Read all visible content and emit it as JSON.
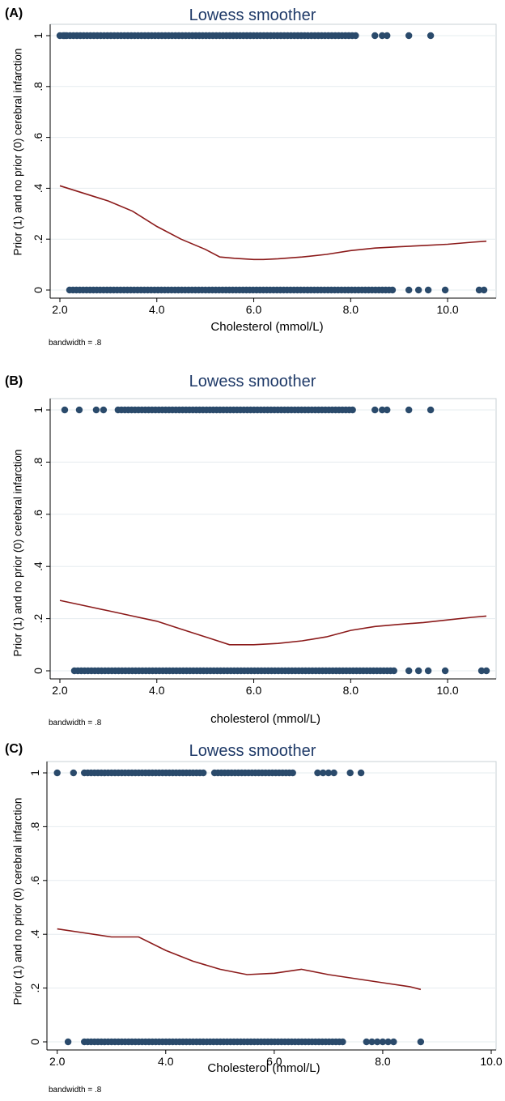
{
  "panels": [
    {
      "letter": "(A)",
      "title": "Lowess smoother"
    },
    {
      "letter": "(B)",
      "title": "Lowess smoother"
    },
    {
      "letter": "(C)",
      "title": "Lowess smoother"
    }
  ],
  "colors": {
    "point": "#2a4a6b",
    "curve": "#8b1a1a",
    "grid": "#e6ecef",
    "title": "#1f3a68"
  },
  "chart_data": [
    {
      "type": "scatter",
      "title": "Lowess smoother",
      "ylabel": "Prior (1) and no prior (0) cerebral infarction",
      "xlabel": "Cholesterol (mmol/L)",
      "note": "bandwidth = .8",
      "xlim": [
        1.9,
        10.9
      ],
      "ylim": [
        0,
        1
      ],
      "xticks": [
        2.0,
        4.0,
        6.0,
        8.0,
        10.0
      ],
      "xtick_labels": [
        "2.0",
        "4.0",
        "6.0",
        "8.0",
        "10.0"
      ],
      "yticks": [
        0,
        0.2,
        0.4,
        0.6,
        0.8,
        1
      ],
      "ytick_labels": [
        "0",
        ".2",
        ".4",
        ".6",
        ".8",
        "1"
      ],
      "grid": true,
      "points_y1": {
        "dense_range": [
          2.0,
          8.1
        ],
        "extra": [
          2.1,
          8.5,
          8.65,
          8.75,
          9.2,
          9.65
        ]
      },
      "points_y0": {
        "dense_range": [
          2.2,
          8.9
        ],
        "extra": [
          9.2,
          9.4,
          9.6,
          9.95,
          10.65,
          10.75
        ]
      },
      "lowess": {
        "x": [
          2.0,
          2.5,
          3.0,
          3.5,
          4.0,
          4.5,
          5.0,
          5.3,
          5.6,
          6.0,
          6.2,
          6.5,
          7.0,
          7.5,
          8.0,
          8.5,
          9.0,
          9.5,
          10.0,
          10.5,
          10.8
        ],
        "y": [
          0.41,
          0.38,
          0.35,
          0.31,
          0.25,
          0.2,
          0.16,
          0.13,
          0.125,
          0.12,
          0.12,
          0.123,
          0.13,
          0.14,
          0.155,
          0.165,
          0.17,
          0.175,
          0.18,
          0.188,
          0.192
        ]
      }
    },
    {
      "type": "scatter",
      "title": "Lowess smoother",
      "ylabel": "Prior (1) and no prior (0) cerebral infarction",
      "xlabel": "cholesterol (mmol/L)",
      "note": "bandwidth = .8",
      "xlim": [
        1.9,
        10.9
      ],
      "ylim": [
        0,
        1
      ],
      "xticks": [
        2.0,
        4.0,
        6.0,
        8.0,
        10.0
      ],
      "xtick_labels": [
        "2.0",
        "4.0",
        "6.0",
        "8.0",
        "10.0"
      ],
      "yticks": [
        0,
        0.2,
        0.4,
        0.6,
        0.8,
        1
      ],
      "ytick_labels": [
        "0",
        ".2",
        ".4",
        ".6",
        ".8",
        "1"
      ],
      "grid": true,
      "points_y1": {
        "dense_range": [
          3.2,
          8.1
        ],
        "extra": [
          2.1,
          2.4,
          2.75,
          2.9,
          8.5,
          8.65,
          8.75,
          9.2,
          9.65
        ]
      },
      "points_y0": {
        "dense_range": [
          2.3,
          8.9
        ],
        "extra": [
          9.2,
          9.4,
          9.6,
          9.95,
          10.7,
          10.8
        ]
      },
      "lowess": {
        "x": [
          2.0,
          2.5,
          3.0,
          3.5,
          4.0,
          4.5,
          5.0,
          5.5,
          6.0,
          6.5,
          7.0,
          7.5,
          8.0,
          8.5,
          9.0,
          9.5,
          10.0,
          10.5,
          10.8
        ],
        "y": [
          0.27,
          0.25,
          0.23,
          0.21,
          0.19,
          0.16,
          0.13,
          0.1,
          0.1,
          0.105,
          0.115,
          0.13,
          0.155,
          0.17,
          0.178,
          0.185,
          0.195,
          0.205,
          0.21
        ]
      }
    },
    {
      "type": "scatter",
      "title": "Lowess smoother",
      "ylabel": "Prior (1) and no prior (0) cerebral infarction",
      "xlabel": "Cholesterol (mmol/L)",
      "note": "bandwidth = .8",
      "xlim": [
        1.9,
        10.0
      ],
      "ylim": [
        0,
        1
      ],
      "xticks": [
        2.0,
        4.0,
        6.0,
        8.0,
        10.0
      ],
      "xtick_labels": [
        "2.0",
        "4.0",
        "6.0",
        "8.0",
        "10.0"
      ],
      "yticks": [
        0,
        0.2,
        0.4,
        0.6,
        0.8,
        1
      ],
      "ytick_labels": [
        "0",
        ".2",
        ".4",
        ".6",
        ".8",
        "1"
      ],
      "grid": true,
      "points_y1": {
        "dense_range_list": [
          [
            2.5,
            4.7
          ],
          [
            4.9,
            6.4
          ]
        ],
        "extra": [
          2.0,
          2.3,
          6.8,
          6.9,
          7.0,
          7.1,
          7.4,
          7.6
        ]
      },
      "points_y0": {
        "dense_range_list": [
          [
            2.5,
            7.3
          ]
        ],
        "extra": [
          2.2,
          7.7,
          7.8,
          7.9,
          8.0,
          8.1,
          8.2,
          8.7
        ]
      },
      "lowess": {
        "x": [
          2.0,
          2.5,
          3.0,
          3.5,
          4.0,
          4.5,
          5.0,
          5.5,
          6.0,
          6.5,
          7.0,
          7.5,
          8.0,
          8.5,
          8.7
        ],
        "y": [
          0.42,
          0.405,
          0.39,
          0.39,
          0.34,
          0.3,
          0.27,
          0.25,
          0.255,
          0.27,
          0.25,
          0.235,
          0.22,
          0.205,
          0.195
        ]
      }
    }
  ]
}
